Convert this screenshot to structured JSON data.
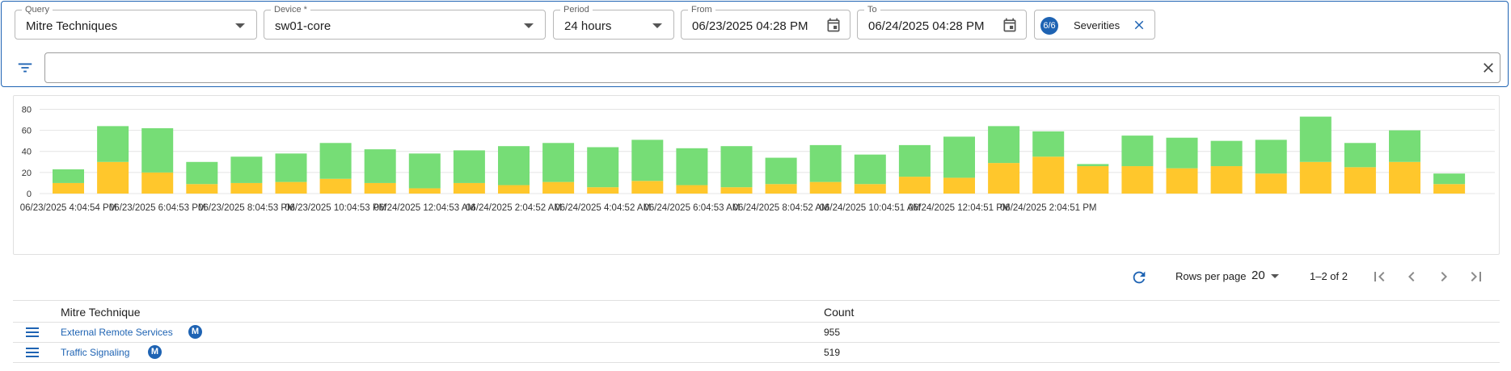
{
  "filters": {
    "query": {
      "label": "Query",
      "value": "Mitre Techniques"
    },
    "device": {
      "label": "Device *",
      "value": "sw01-core"
    },
    "period": {
      "label": "Period",
      "value": "24 hours"
    },
    "from": {
      "label": "From",
      "value": "06/23/2025 04:28 PM"
    },
    "to": {
      "label": "To",
      "value": "06/24/2025 04:28 PM"
    },
    "severities": {
      "badge": "6/6",
      "label": "Severities"
    },
    "search": {
      "placeholder": "",
      "value": ""
    }
  },
  "chart_data": {
    "type": "bar",
    "stacked": true,
    "y_ticks": [
      0,
      20,
      40,
      60,
      80
    ],
    "ylim": [
      0,
      88
    ],
    "grid": true,
    "x_tick_labels": [
      "06/23/2025 4:04:54 PM",
      "06/23/2025 6:04:53 PM",
      "06/23/2025 8:04:53 PM",
      "06/23/2025 10:04:53 PM",
      "06/24/2025 12:04:53 AM",
      "06/24/2025 2:04:52 AM",
      "06/24/2025 4:04:52 AM",
      "06/24/2025 6:04:53 AM",
      "06/24/2025 8:04:52 AM",
      "06/24/2025 10:04:51 AM",
      "06/24/2025 12:04:51 PM",
      "06/24/2025 2:04:51 PM"
    ],
    "series": [
      {
        "color": "#ffc72c",
        "values": [
          10,
          30,
          20,
          9,
          10,
          11,
          14,
          10,
          5,
          10,
          8,
          11,
          6,
          12,
          8,
          6,
          9,
          11,
          9,
          16,
          15,
          29,
          35,
          26,
          26,
          24,
          26,
          19,
          30,
          25,
          30,
          9
        ]
      },
      {
        "color": "#76dd76",
        "values": [
          13,
          34,
          42,
          21,
          25,
          27,
          34,
          32,
          33,
          31,
          37,
          37,
          38,
          39,
          35,
          39,
          25,
          35,
          28,
          30,
          39,
          35,
          24,
          2,
          29,
          29,
          24,
          32,
          43,
          23,
          30,
          10
        ]
      }
    ]
  },
  "pagination": {
    "rows_per_page_label": "Rows per page",
    "rows_per_page": "20",
    "range": "1–2 of 2"
  },
  "table": {
    "headers": [
      "Mitre Technique",
      "Count"
    ],
    "rows": [
      {
        "technique": "External Remote Services",
        "badge": "M",
        "count": "955"
      },
      {
        "technique": "Traffic Signaling",
        "badge": "M",
        "count": "519"
      }
    ]
  }
}
